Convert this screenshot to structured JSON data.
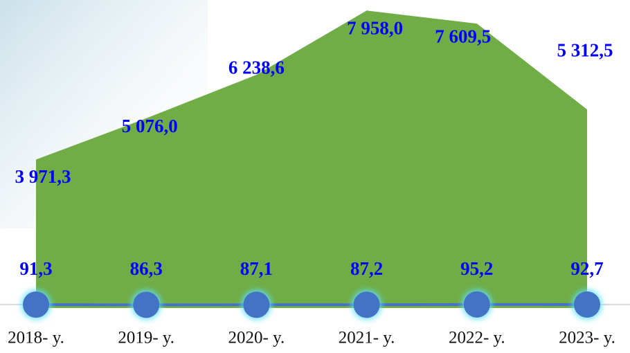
{
  "chart_data": {
    "type": "area",
    "categories": [
      "2018- y.",
      "2019- y.",
      "2020- y.",
      "2021- y.",
      "2022- y.",
      "2023- y."
    ],
    "series": [
      {
        "type": "area",
        "color": "#70ad47",
        "values": [
          3971.3,
          5076.0,
          6238.6,
          7958.0,
          7609.5,
          5312.5
        ],
        "value_labels": [
          "3 971,3",
          "5 076,0",
          "6 238,6",
          "7 958,0",
          "7 609,5",
          "5 312,5"
        ]
      },
      {
        "type": "line",
        "color": "#4472c4",
        "values": [
          91.3,
          86.3,
          87.1,
          87.2,
          95.2,
          92.7
        ],
        "value_labels": [
          "91,3",
          "86,3",
          "87,1",
          "87,2",
          "95,2",
          "92,7"
        ]
      }
    ],
    "ylim": [
      0,
      8000
    ],
    "label_color": "#0000ff"
  }
}
